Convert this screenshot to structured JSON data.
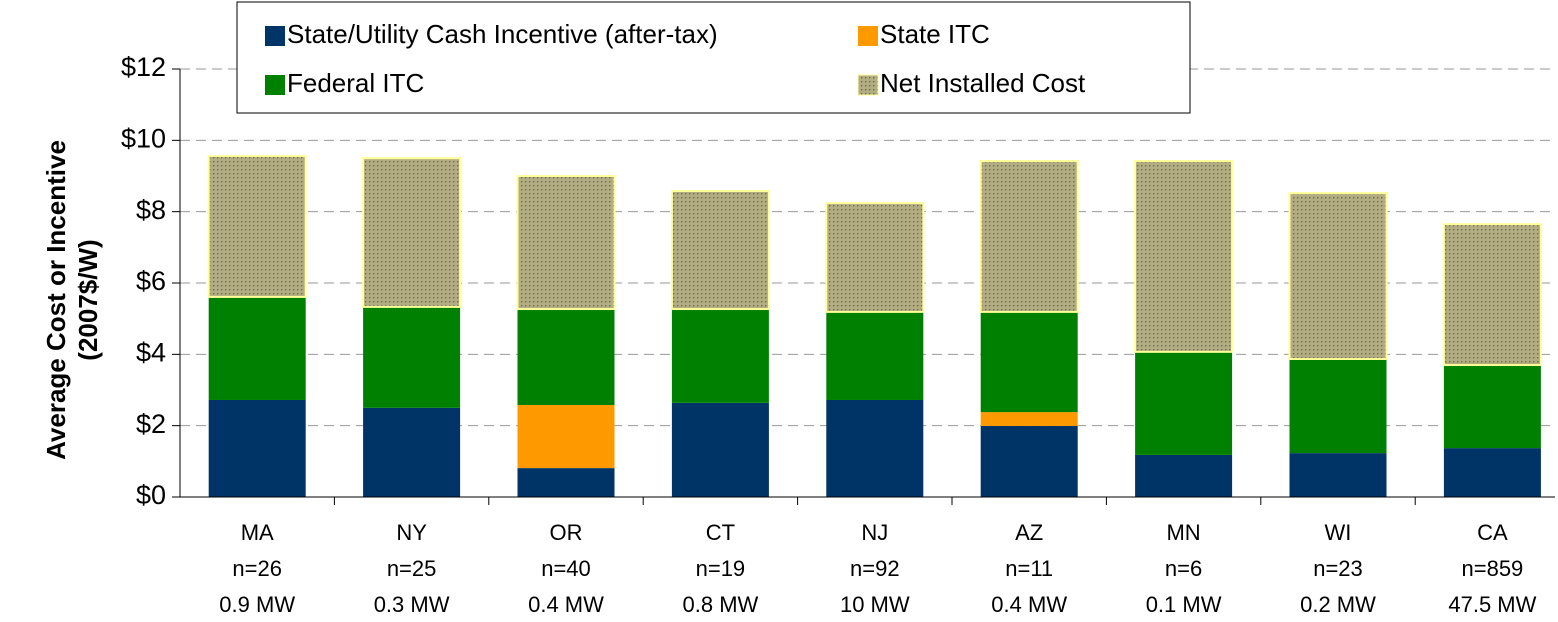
{
  "chart_data": {
    "type": "stacked_bar",
    "ylabel": [
      "Average Cost or Incentive",
      "(2007$/W)"
    ],
    "categories": [
      [
        "MA",
        "n=26",
        "0.9 MW"
      ],
      [
        "NY",
        "n=25",
        "0.3 MW"
      ],
      [
        "OR",
        "n=40",
        "0.4 MW"
      ],
      [
        "CT",
        "n=19",
        "0.8 MW"
      ],
      [
        "NJ",
        "n=92",
        "10 MW"
      ],
      [
        "AZ",
        "n=11",
        "0.4 MW"
      ],
      [
        "MN",
        "n=6",
        "0.1 MW"
      ],
      [
        "WI",
        "n=23",
        "0.2 MW"
      ],
      [
        "CA",
        "n=859",
        "47.5 MW"
      ]
    ],
    "series": [
      {
        "name": "State/Utility Cash Incentive (after-tax)",
        "color": "#003366",
        "values": [
          2.72,
          2.5,
          0.81,
          2.64,
          2.72,
          1.99,
          1.18,
          1.23,
          1.37
        ]
      },
      {
        "name": "State ITC",
        "color": "#ff9900",
        "values": [
          0,
          0,
          1.77,
          0,
          0,
          0.39,
          0,
          0,
          0
        ]
      },
      {
        "name": "Federal ITC",
        "color": "#008000",
        "values": [
          2.89,
          2.83,
          2.69,
          2.63,
          2.47,
          2.81,
          2.89,
          2.64,
          2.33
        ]
      },
      {
        "name": "Net Installed Cost",
        "color": "#b3ad83",
        "values": [
          3.95,
          4.17,
          3.73,
          3.31,
          3.05,
          4.23,
          5.35,
          4.65,
          3.95
        ]
      }
    ],
    "ylim": [
      0,
      12
    ],
    "yticks": [
      {
        "value": 0,
        "label": "$0"
      },
      {
        "value": 2,
        "label": "$2"
      },
      {
        "value": 4,
        "label": "$4"
      },
      {
        "value": 6,
        "label": "$6"
      },
      {
        "value": 8,
        "label": "$8"
      },
      {
        "value": 10,
        "label": "$10"
      },
      {
        "value": 12,
        "label": "$12"
      }
    ],
    "grid": true
  }
}
